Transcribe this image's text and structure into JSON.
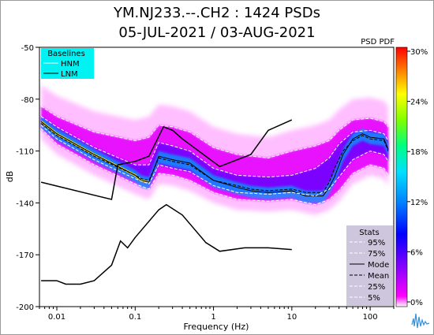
{
  "header": {
    "title_line1": "YM.NJ233.--.CH2 : 1424 PSDs",
    "title_line2": "05-JUL-2021 / 03-AUG-2021"
  },
  "chart_data": {
    "type": "heatmap",
    "xlabel": "Frequency (Hz)",
    "ylabel": "dB",
    "xscale": "log",
    "xlim": [
      0.006,
      200
    ],
    "ylim": [
      -200,
      -50
    ],
    "x_ticks": [
      {
        "value": 0.01,
        "label": "0.01"
      },
      {
        "value": 0.1,
        "label": "0.1"
      },
      {
        "value": 1,
        "label": "1"
      },
      {
        "value": 10,
        "label": "10"
      },
      {
        "value": 100,
        "label": "100"
      }
    ],
    "y_ticks": [
      {
        "value": -50,
        "label": "-50"
      },
      {
        "value": -80,
        "label": "-80"
      },
      {
        "value": -110,
        "label": "-110"
      },
      {
        "value": -140,
        "label": "-140"
      },
      {
        "value": -170,
        "label": "-170"
      },
      {
        "value": -200,
        "label": "-200"
      }
    ],
    "colorbar": {
      "title": "PSD PDF",
      "ticks": [
        "0%",
        "6%",
        "12%",
        "18%",
        "24%",
        "30%"
      ],
      "colors": [
        "#ff00ff",
        "#8000ff",
        "#0000ff",
        "#00aaff",
        "#00ffcc",
        "#00ff00",
        "#ffff00",
        "#ff8000",
        "#ff0000"
      ]
    },
    "baselines_legend": {
      "title": "Baselines",
      "items": [
        "HNM",
        "LNM"
      ],
      "background": "#00f2f2"
    },
    "stats_legend": {
      "title": "Stats",
      "items": [
        "95%",
        "75%",
        "Mode",
        "Mean",
        "25%",
        "5%"
      ],
      "background": "#cdc6dc"
    },
    "grid": false,
    "series": [
      {
        "name": "HNM",
        "x": [
          0.0063,
          0.05,
          0.06,
          0.1,
          0.15,
          0.23,
          0.3,
          0.4,
          1.2,
          3,
          5,
          10
        ],
        "y": [
          -128,
          -138,
          -118,
          -116,
          -113,
          -96,
          -98,
          -103,
          -119,
          -112,
          -98,
          -92
        ]
      },
      {
        "name": "LNM",
        "x": [
          0.0063,
          0.01,
          0.013,
          0.02,
          0.03,
          0.05,
          0.065,
          0.08,
          0.1,
          0.2,
          0.25,
          0.4,
          0.8,
          1.2,
          2.5,
          5,
          10
        ],
        "y": [
          -185,
          -185,
          -187,
          -187,
          -185,
          -176,
          -162,
          -166,
          -160,
          -144,
          -141,
          -147,
          -163,
          -168,
          -166,
          -166,
          -167
        ]
      },
      {
        "name": "Mode",
        "x": [
          0.0063,
          0.01,
          0.03,
          0.1,
          0.12,
          0.15,
          0.2,
          0.3,
          0.5,
          1,
          2,
          3,
          5,
          10,
          15,
          25,
          30,
          35,
          45,
          60,
          80,
          100,
          150,
          170
        ],
        "y": [
          -93,
          -100,
          -112,
          -124,
          -127,
          -128,
          -113,
          -115,
          -117,
          -127,
          -131,
          -133,
          -134,
          -133,
          -136,
          -136,
          -131,
          -125,
          -112,
          -103,
          -100,
          -102,
          -103,
          -109
        ]
      },
      {
        "name": "Mean",
        "x": [
          0.0063,
          0.01,
          0.03,
          0.1,
          0.12,
          0.15,
          0.2,
          0.3,
          0.5,
          1,
          2,
          3,
          5,
          10,
          15,
          25,
          30,
          35,
          45,
          60,
          80,
          100,
          150,
          170
        ],
        "y": [
          -94,
          -101,
          -113,
          -124,
          -126,
          -127,
          -114,
          -116,
          -118,
          -127,
          -130,
          -132,
          -133,
          -132,
          -134,
          -134,
          -128,
          -120,
          -110,
          -104,
          -101,
          -103,
          -104,
          -110
        ]
      },
      {
        "name": "95%",
        "x": [
          0.0063,
          0.01,
          0.03,
          0.1,
          0.15,
          0.2,
          0.3,
          0.5,
          1,
          2,
          5,
          10,
          20,
          30,
          40,
          60,
          100,
          150,
          170
        ],
        "y": [
          -84,
          -90,
          -99,
          -104,
          -102,
          -95,
          -96,
          -99,
          -108,
          -112,
          -114,
          -110,
          -107,
          -104,
          -98,
          -92,
          -91,
          -93,
          -96
        ]
      },
      {
        "name": "75%",
        "x": [
          0.0063,
          0.01,
          0.03,
          0.1,
          0.15,
          0.2,
          0.3,
          0.5,
          1,
          2,
          5,
          10,
          20,
          30,
          40,
          60,
          100,
          150,
          170
        ],
        "y": [
          -90,
          -96,
          -108,
          -118,
          -118,
          -105,
          -107,
          -110,
          -120,
          -124,
          -125,
          -124,
          -120,
          -114,
          -106,
          -99,
          -98,
          -100,
          -104
        ]
      },
      {
        "name": "25%",
        "x": [
          0.0063,
          0.01,
          0.03,
          0.1,
          0.15,
          0.2,
          0.3,
          0.5,
          1,
          2,
          5,
          10,
          20,
          30,
          40,
          60,
          100,
          150,
          170
        ],
        "y": [
          -95,
          -103,
          -115,
          -126,
          -129,
          -118,
          -120,
          -122,
          -130,
          -134,
          -135,
          -134,
          -136,
          -132,
          -125,
          -115,
          -110,
          -112,
          -116
        ]
      },
      {
        "name": "5%",
        "x": [
          0.0063,
          0.01,
          0.03,
          0.1,
          0.15,
          0.2,
          0.3,
          0.5,
          1,
          2,
          5,
          10,
          20,
          30,
          40,
          60,
          100,
          150,
          170
        ],
        "y": [
          -97,
          -106,
          -118,
          -129,
          -132,
          -123,
          -124,
          -127,
          -134,
          -138,
          -139,
          -138,
          -141,
          -138,
          -133,
          -123,
          -118,
          -120,
          -124
        ]
      }
    ]
  }
}
